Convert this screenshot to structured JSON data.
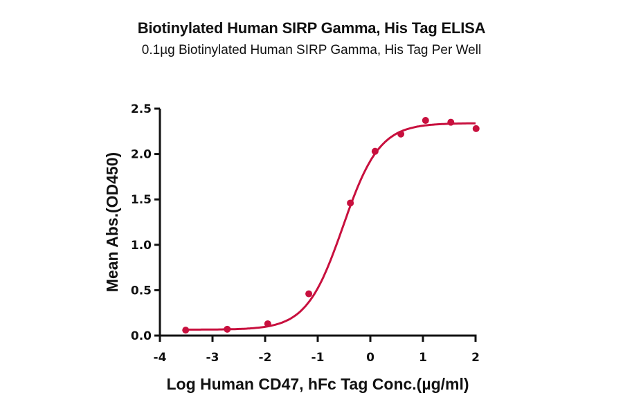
{
  "header": {
    "title": "Biotinylated Human SIRP Gamma, His Tag ELISA",
    "subtitle": "0.1µg Biotinylated Human SIRP Gamma, His Tag Per Well"
  },
  "chart_data": {
    "type": "scatter",
    "title": "Biotinylated Human SIRP Gamma, His Tag ELISA",
    "subtitle": "0.1µg Biotinylated Human SIRP Gamma, His Tag Per Well",
    "xlabel": "Log Human CD47, hFc Tag Conc.(µg/ml)",
    "ylabel": "Mean Abs.(OD450)",
    "xlim": [
      -4,
      2
    ],
    "ylim": [
      0,
      2.5
    ],
    "xticks": [
      "-4",
      "-3",
      "-2",
      "-1",
      "0",
      "1",
      "2"
    ],
    "yticks": [
      "0.0",
      "0.5",
      "1.0",
      "1.5",
      "2.0",
      "2.5"
    ],
    "grid": false,
    "legend": null,
    "color": "#C8103E",
    "series": [
      {
        "name": "Human CD47, hFc Tag",
        "x": [
          -3.51,
          -2.72,
          -1.95,
          -1.17,
          -0.38,
          0.09,
          0.58,
          1.05,
          1.53,
          2.01
        ],
        "y": [
          0.06,
          0.07,
          0.13,
          0.46,
          1.46,
          2.03,
          2.22,
          2.37,
          2.35,
          2.28
        ],
        "fit": "4-parameter logistic",
        "fit_params": {
          "bottom": 0.065,
          "top": 2.34,
          "log_ec50": -0.52,
          "hill": 1.25
        }
      }
    ]
  }
}
